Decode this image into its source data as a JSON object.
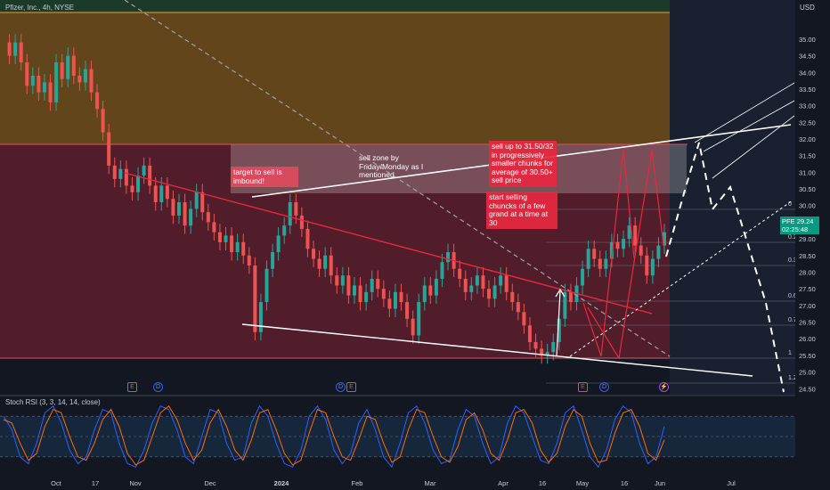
{
  "header": {
    "symbol_label": "Pfizer, Inc., 4h, NYSE",
    "currency": "USD"
  },
  "rsi_panel": {
    "title": "Stoch RSI (3, 3, 14, 14, close)"
  },
  "price_tag": {
    "ticker": "PFE",
    "price": "29.24",
    "countdown": "02:25:48"
  },
  "annotations": {
    "target": "target to sell is imbound!",
    "sell_zone": "sell zone by Friday/Monday as I mentioned",
    "sell_up": "sell up to 31.50/32 in progressively smaller chunks for average of 30.50+ sell price",
    "start_selling": "start selling chuncks of a few grand at a time at 30"
  },
  "fib_labels": [
    "0",
    "0.2",
    "0.3",
    "0.6",
    "0.7",
    "1",
    "1.2"
  ],
  "colors": {
    "background": "#131722",
    "sell_zone": "#6b4a1a",
    "buy_zone": "#5a1e2b",
    "bullish": "#26a69a",
    "bearish": "#ef5350",
    "accent_red": "#e8283f",
    "stoch_k": "#2962ff",
    "stoch_d": "#ff6d00"
  },
  "events": [
    {
      "kind": "E",
      "icon": "earnings-icon"
    },
    {
      "kind": "D",
      "icon": "dividend-icon"
    },
    {
      "kind": "D",
      "icon": "dividend-icon"
    },
    {
      "kind": "E",
      "icon": "earnings-icon"
    },
    {
      "kind": "E",
      "icon": "earnings-icon"
    },
    {
      "kind": "D",
      "icon": "dividend-icon"
    },
    {
      "kind": "⚡",
      "icon": "split-icon"
    }
  ],
  "chart_data": [
    {
      "type": "line",
      "title": "Pfizer, Inc., 4h, NYSE",
      "ylabel": "USD",
      "ylim": [
        24.4,
        35.8
      ],
      "y_ticks": [
        "35.00",
        "34.50",
        "34.00",
        "33.50",
        "33.00",
        "32.50",
        "32.00",
        "31.50",
        "31.00",
        "30.50",
        "30.00",
        "29.50",
        "29.00",
        "28.50",
        "28.00",
        "27.50",
        "27.00",
        "26.50",
        "26.00",
        "25.50",
        "25.00",
        "24.50"
      ],
      "x_ticks": [
        "Oct",
        "17",
        "Nov",
        "Dec",
        "2024",
        "Feb",
        "Mar",
        "Apr",
        "16",
        "May",
        "16",
        "Jun",
        "Jul"
      ],
      "series": [
        {
          "values": [
            34.9,
            34.5,
            34.9,
            34.3,
            33.6,
            33.9,
            33.4,
            33.7,
            33.1,
            34.3,
            33.8,
            34.5,
            33.9,
            33.7,
            34.1,
            33.4,
            32.9,
            32.2,
            31.2,
            30.8,
            31.1,
            30.6,
            30.4,
            30.9,
            31.2,
            30.6,
            30.1,
            30.6,
            30.2,
            29.7,
            30.1,
            29.4,
            29.9,
            30.4,
            29.8,
            29.5,
            29.2,
            28.9,
            29.1,
            28.6,
            28.9,
            28.5,
            28.2,
            26.2,
            27.1,
            28.1,
            28.6,
            29.1,
            29.4,
            30.1,
            29.7,
            29.3,
            28.7,
            28.4,
            28.1,
            28.5,
            27.9,
            27.6,
            27.9,
            27.3,
            27.6,
            27.1,
            27.4,
            27.8,
            27.5,
            27.2,
            26.9,
            27.4,
            27.1,
            26.6,
            26.1,
            27.1,
            27.6,
            27.3,
            27.8,
            28.3,
            28.6,
            28.1,
            27.8,
            27.4,
            27.6,
            27.9,
            27.5,
            27.2,
            27.6,
            27.9,
            27.4,
            27.1,
            26.8,
            26.4,
            25.9,
            25.7,
            25.5,
            25.6,
            25.9,
            26.6,
            27.4,
            27.1,
            27.6,
            28.1,
            28.7,
            28.4,
            28.1,
            28.4,
            28.9,
            28.7,
            29.0,
            29.4,
            28.8,
            28.5,
            27.9,
            28.4,
            28.8,
            29.2
          ]
        }
      ]
    },
    {
      "type": "line",
      "title": "Stoch RSI (3, 3, 14, 14, close)",
      "ylim": [
        0,
        100
      ],
      "y_ticks": [
        "100.00",
        "75.00",
        "50.00",
        "25.00",
        "0.00"
      ],
      "series": [
        {
          "name": "K",
          "values": [
            80,
            60,
            20,
            10,
            40,
            85,
            95,
            70,
            30,
            10,
            20,
            60,
            90,
            85,
            40,
            10,
            5,
            30,
            70,
            95,
            90,
            60,
            20,
            10,
            50,
            90,
            85,
            40,
            15,
            20,
            70,
            95,
            80,
            40,
            10,
            5,
            30,
            80,
            95,
            75,
            30,
            10,
            25,
            70,
            90,
            60,
            20,
            5,
            40,
            85,
            95,
            70,
            30,
            10,
            15,
            60,
            90,
            80,
            40,
            10,
            20,
            70,
            95,
            85,
            50,
            15,
            10,
            40,
            85,
            95,
            60,
            20,
            5,
            30,
            75,
            95,
            85,
            40,
            10,
            20,
            65
          ]
        },
        {
          "name": "D",
          "values": [
            75,
            70,
            40,
            15,
            25,
            65,
            90,
            85,
            50,
            20,
            15,
            40,
            75,
            90,
            65,
            25,
            8,
            15,
            50,
            85,
            95,
            75,
            40,
            15,
            30,
            70,
            90,
            65,
            30,
            15,
            45,
            85,
            90,
            60,
            25,
            8,
            15,
            55,
            90,
            85,
            50,
            20,
            15,
            45,
            80,
            75,
            40,
            12,
            20,
            60,
            90,
            85,
            50,
            20,
            12,
            35,
            75,
            85,
            60,
            25,
            15,
            45,
            85,
            90,
            70,
            30,
            12,
            25,
            65,
            90,
            80,
            40,
            12,
            15,
            55,
            85,
            90,
            65,
            25,
            15,
            45
          ]
        }
      ]
    }
  ]
}
